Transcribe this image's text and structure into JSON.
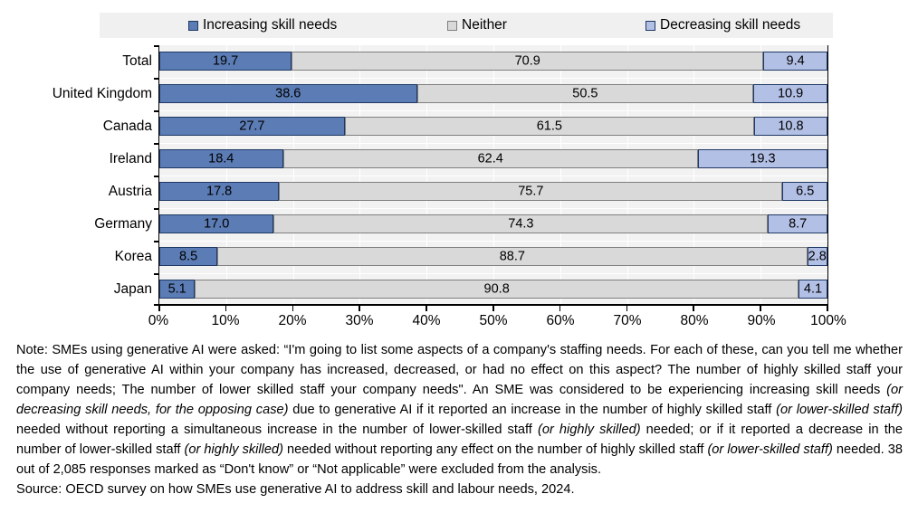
{
  "colors": {
    "increasing_fill": "#5b7cb5",
    "increasing_border": "#1f3864",
    "neither_fill": "#d9d9d9",
    "neither_border": "#7f7f7f",
    "decreasing_fill": "#b3c0e6",
    "decreasing_border": "#1f3864",
    "plot_background": "#f2f2f2",
    "gridline": "#ffffff",
    "legend_background": "#f0f0f0",
    "axis": "#000000"
  },
  "legend": {
    "items": [
      {
        "label": "Increasing skill needs",
        "fill": "#5b7cb5",
        "border": "#1f3864"
      },
      {
        "label": "Neither",
        "fill": "#d9d9d9",
        "border": "#7f7f7f"
      },
      {
        "label": "Decreasing skill needs",
        "fill": "#b3c0e6",
        "border": "#1f3864"
      }
    ]
  },
  "chart_data": {
    "type": "bar",
    "orientation": "horizontal",
    "stacked": true,
    "categories": [
      "Total",
      "United Kingdom",
      "Canada",
      "Ireland",
      "Austria",
      "Germany",
      "Korea",
      "Japan"
    ],
    "series": [
      {
        "name": "Increasing skill needs",
        "values": [
          19.7,
          38.6,
          27.7,
          18.4,
          17.8,
          17.0,
          8.5,
          5.1
        ],
        "labels": [
          "19.7",
          "38.6",
          "27.7",
          "18.4",
          "17.8",
          "17.0",
          "8.5",
          "5.1"
        ]
      },
      {
        "name": "Neither",
        "values": [
          70.9,
          50.5,
          61.5,
          62.4,
          75.7,
          74.3,
          88.7,
          90.8
        ],
        "labels": [
          "70.9",
          "50.5",
          "61.5",
          "62.4",
          "75.7",
          "74.3",
          "88.7",
          "90.8"
        ]
      },
      {
        "name": "Decreasing skill needs",
        "values": [
          9.4,
          10.9,
          10.8,
          19.3,
          6.5,
          8.7,
          2.8,
          4.1
        ],
        "labels": [
          "9.4",
          "10.9",
          "10.8",
          "19.3",
          "6.5",
          "8.7",
          "2.8",
          "4.1"
        ]
      }
    ],
    "x_tick_labels": [
      "0%",
      "10%",
      "20%",
      "30%",
      "40%",
      "50%",
      "60%",
      "70%",
      "80%",
      "90%",
      "100%"
    ],
    "xlim": [
      0,
      100
    ],
    "grid": true,
    "legend_position": "top",
    "value_labels_shown": true
  },
  "note": {
    "segments": [
      {
        "text": "Note: SMEs using generative AI were asked: “I'm going to list some aspects of a company's staffing needs. For each of these, can you tell me whether the use of generative AI within your company has increased, decreased, or had no effect on this aspect? The number of highly skilled staff your company needs; The number of lower skilled staff your company needs\". An SME was considered to be experiencing increasing skill needs ",
        "italic": false
      },
      {
        "text": "(or decreasing skill needs, for the opposing case)",
        "italic": true
      },
      {
        "text": " due to generative AI if it reported an increase in the number of highly skilled staff ",
        "italic": false
      },
      {
        "text": "(or lower-skilled staff)",
        "italic": true
      },
      {
        "text": " needed without reporting a simultaneous increase in the number of lower-skilled staff ",
        "italic": false
      },
      {
        "text": "(or highly skilled)",
        "italic": true
      },
      {
        "text": " needed; or if it reported a decrease in the number of lower-skilled staff ",
        "italic": false
      },
      {
        "text": "(or highly skilled)",
        "italic": true
      },
      {
        "text": " needed without reporting any effect on the number of highly skilled staff ",
        "italic": false
      },
      {
        "text": "(or lower-skilled staff)",
        "italic": true
      },
      {
        "text": " needed. 38 out of 2,085 responses marked as “Don't know” or “Not applicable” were excluded from the analysis.",
        "italic": false
      }
    ]
  },
  "source_line": "Source: OECD survey on how SMEs use generative AI to address skill and labour needs, 2024."
}
